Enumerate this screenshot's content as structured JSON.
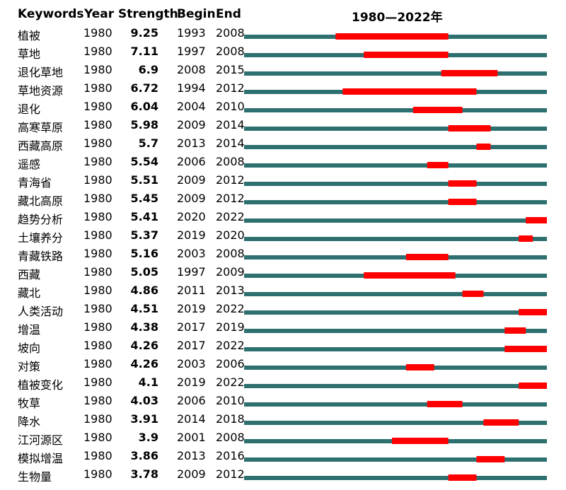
{
  "headers": {
    "keyword": "Keywords",
    "year": "Year",
    "strength": "Strength",
    "begin": "Begin",
    "end": "End",
    "timeline": "1980—2022年"
  },
  "chart_data": {
    "type": "table",
    "timeline_start": 1980,
    "timeline_end": 2022,
    "timeline_color": "#2E7070",
    "burst_color": "#FF0000",
    "rows": [
      {
        "keyword": "植被",
        "year": "1980",
        "strength": "9.25",
        "begin": "1993",
        "end": "2008"
      },
      {
        "keyword": "草地",
        "year": "1980",
        "strength": "7.11",
        "begin": "1997",
        "end": "2008"
      },
      {
        "keyword": "退化草地",
        "year": "1980",
        "strength": "6.9",
        "begin": "2008",
        "end": "2015"
      },
      {
        "keyword": "草地资源",
        "year": "1980",
        "strength": "6.72",
        "begin": "1994",
        "end": "2012"
      },
      {
        "keyword": "退化",
        "year": "1980",
        "strength": "6.04",
        "begin": "2004",
        "end": "2010"
      },
      {
        "keyword": "高寒草原",
        "year": "1980",
        "strength": "5.98",
        "begin": "2009",
        "end": "2014"
      },
      {
        "keyword": "西藏高原",
        "year": "1980",
        "strength": "5.7",
        "begin": "2013",
        "end": "2014"
      },
      {
        "keyword": "遥感",
        "year": "1980",
        "strength": "5.54",
        "begin": "2006",
        "end": "2008"
      },
      {
        "keyword": "青海省",
        "year": "1980",
        "strength": "5.51",
        "begin": "2009",
        "end": "2012"
      },
      {
        "keyword": "藏北高原",
        "year": "1980",
        "strength": "5.45",
        "begin": "2009",
        "end": "2012"
      },
      {
        "keyword": "趋势分析",
        "year": "1980",
        "strength": "5.41",
        "begin": "2020",
        "end": "2022"
      },
      {
        "keyword": "土壤养分",
        "year": "1980",
        "strength": "5.37",
        "begin": "2019",
        "end": "2020"
      },
      {
        "keyword": "青藏铁路",
        "year": "1980",
        "strength": "5.16",
        "begin": "2003",
        "end": "2008"
      },
      {
        "keyword": "西藏",
        "year": "1980",
        "strength": "5.05",
        "begin": "1997",
        "end": "2009"
      },
      {
        "keyword": "藏北",
        "year": "1980",
        "strength": "4.86",
        "begin": "2011",
        "end": "2013"
      },
      {
        "keyword": "人类活动",
        "year": "1980",
        "strength": "4.51",
        "begin": "2019",
        "end": "2022"
      },
      {
        "keyword": "增温",
        "year": "1980",
        "strength": "4.38",
        "begin": "2017",
        "end": "2019"
      },
      {
        "keyword": "坡向",
        "year": "1980",
        "strength": "4.26",
        "begin": "2017",
        "end": "2022"
      },
      {
        "keyword": "对策",
        "year": "1980",
        "strength": "4.26",
        "begin": "2003",
        "end": "2006"
      },
      {
        "keyword": "植被变化",
        "year": "1980",
        "strength": "4.1",
        "begin": "2019",
        "end": "2022"
      },
      {
        "keyword": "牧草",
        "year": "1980",
        "strength": "4.03",
        "begin": "2006",
        "end": "2010"
      },
      {
        "keyword": "降水",
        "year": "1980",
        "strength": "3.91",
        "begin": "2014",
        "end": "2018"
      },
      {
        "keyword": "江河源区",
        "year": "1980",
        "strength": "3.9",
        "begin": "2001",
        "end": "2008"
      },
      {
        "keyword": "模拟增温",
        "year": "1980",
        "strength": "3.86",
        "begin": "2013",
        "end": "2016"
      },
      {
        "keyword": "生物量",
        "year": "1980",
        "strength": "3.78",
        "begin": "2009",
        "end": "2012"
      }
    ]
  }
}
